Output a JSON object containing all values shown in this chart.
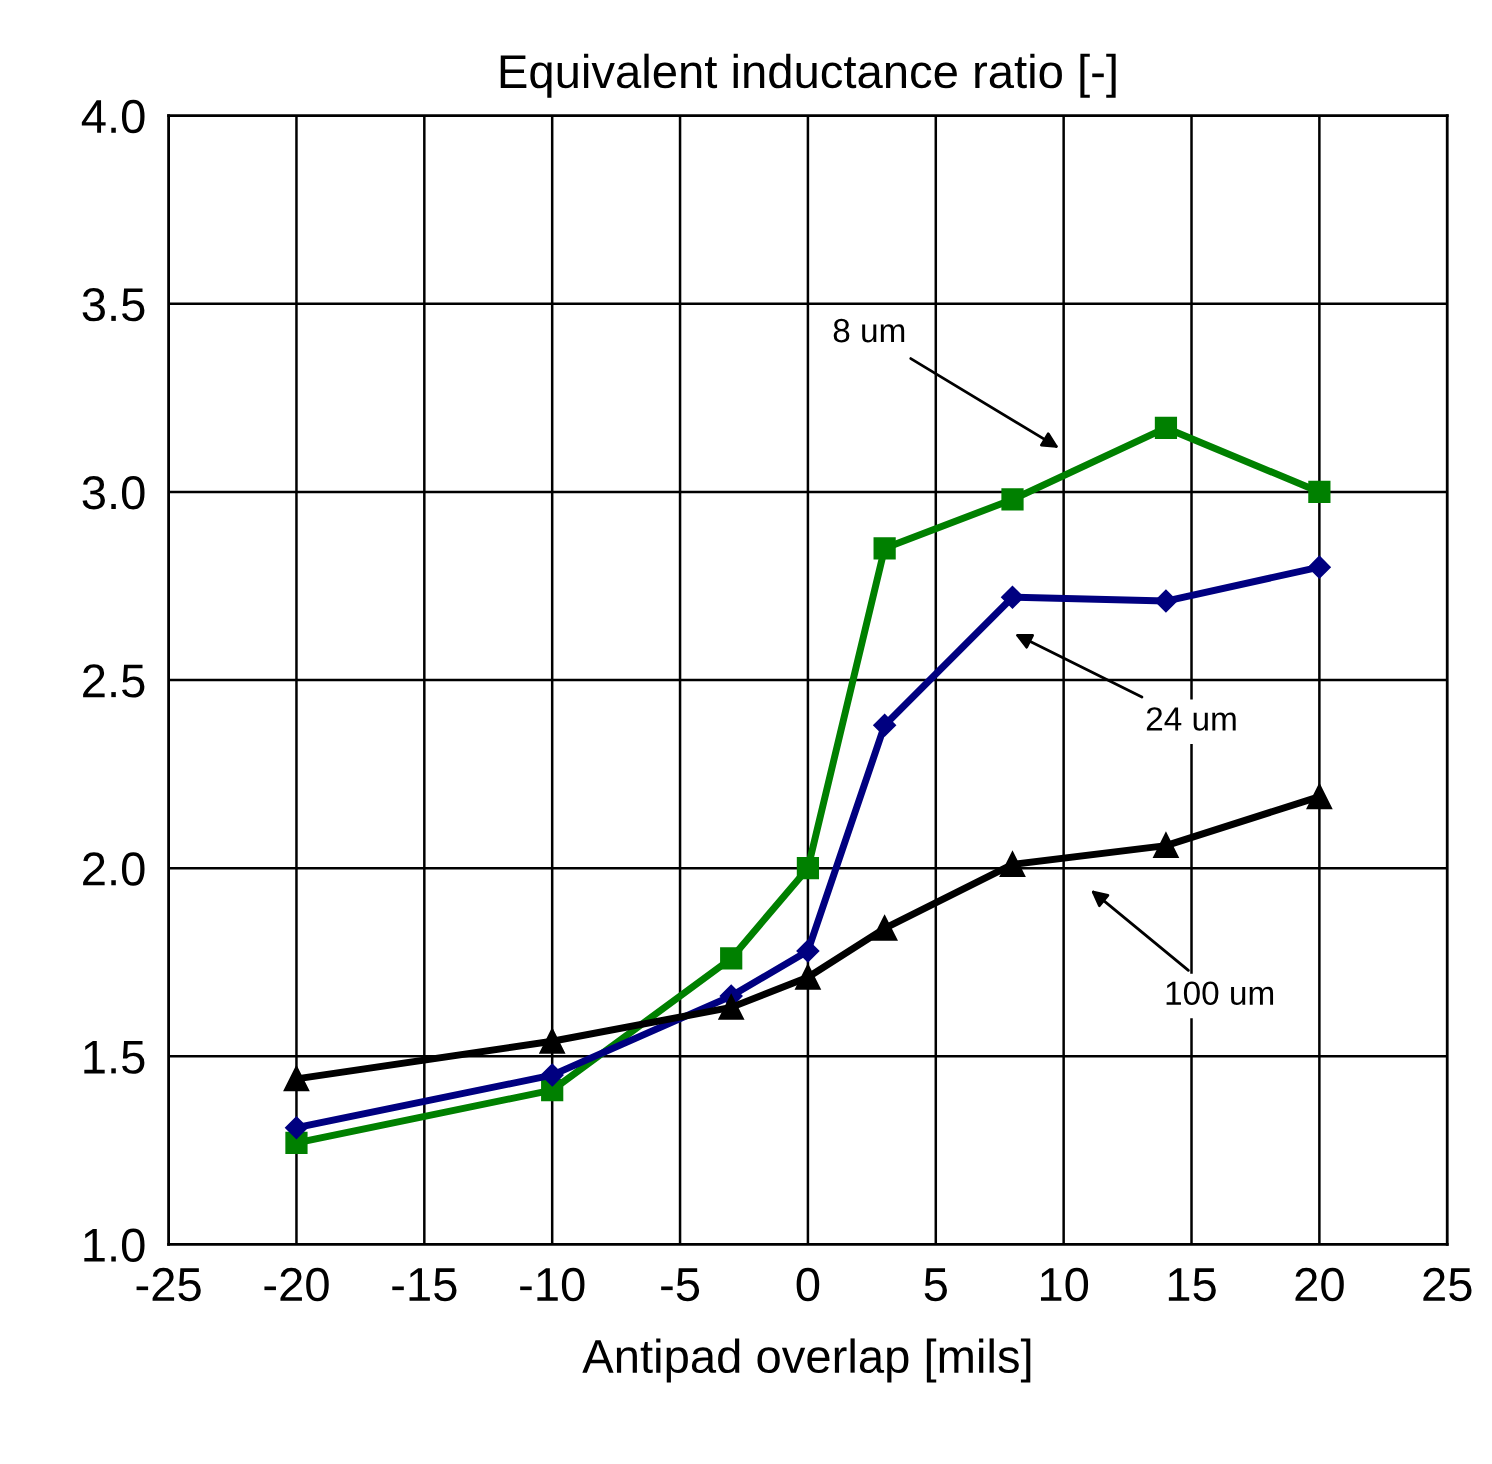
{
  "chart_data": {
    "type": "line",
    "title": "Equivalent inductance ratio [-]",
    "xlabel": "Antipad overlap [mils]",
    "x": [
      -20,
      -10,
      -3,
      0,
      3,
      8,
      14,
      20
    ],
    "series": [
      {
        "color": "#008000",
        "marker": "square",
        "values": [
          1.27,
          1.41,
          1.76,
          2.0,
          2.85,
          2.98,
          3.17,
          3.0
        ]
      },
      {
        "color": "#000080",
        "marker": "diamond",
        "values": [
          1.31,
          1.45,
          1.66,
          1.78,
          2.38,
          2.72,
          2.71,
          2.8
        ]
      },
      {
        "color": "#000000",
        "marker": "triangle",
        "values": [
          1.44,
          1.54,
          1.63,
          1.71,
          1.84,
          2.01,
          2.06,
          2.19
        ]
      }
    ],
    "annotations": [
      "8 um",
      "24 um",
      "100 um"
    ],
    "xlim": [
      -25,
      25
    ],
    "xticks": [
      -25,
      -20,
      -15,
      -10,
      -5,
      0,
      5,
      10,
      15,
      20,
      25
    ],
    "ylim": [
      1.0,
      4.0
    ],
    "yticks": [
      {
        "value": 1.0,
        "label": "1.0"
      },
      {
        "value": 1.5,
        "label": "1.5"
      },
      {
        "value": 2.0,
        "label": "2.0"
      },
      {
        "value": 2.5,
        "label": "2.5"
      },
      {
        "value": 3.0,
        "label": "3.0"
      },
      {
        "value": 3.5,
        "label": "3.5"
      },
      {
        "value": 4.0,
        "label": "4.0"
      }
    ],
    "grid": true,
    "line_style": "solid"
  }
}
